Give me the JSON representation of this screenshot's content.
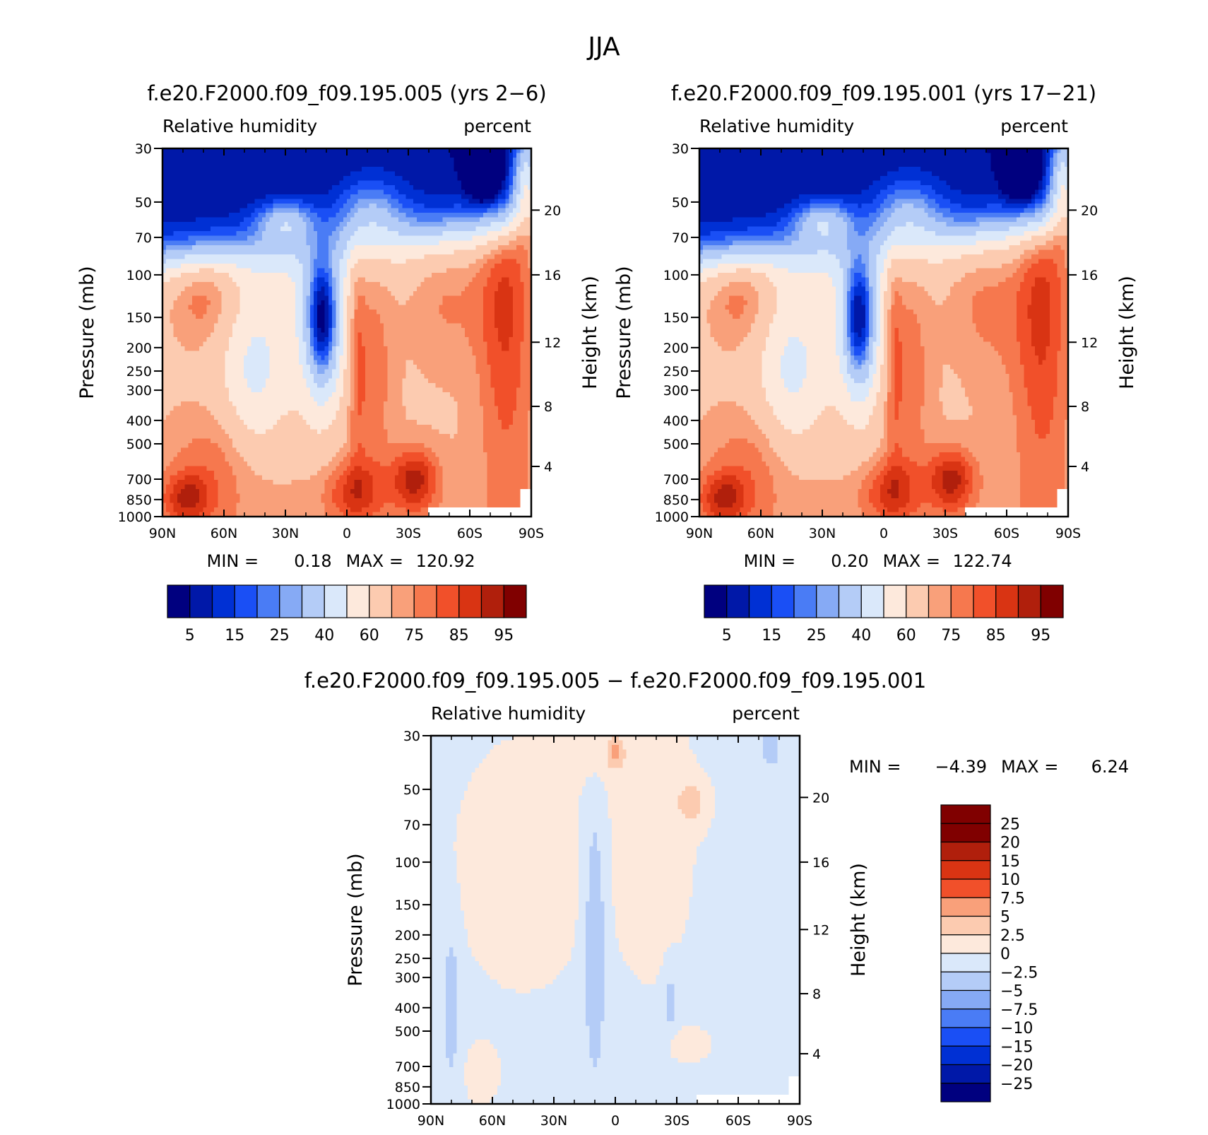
{
  "page_title": "JJA",
  "chart_data": [
    {
      "type": "heatmap",
      "subtype": "filled-contour latitude-pressure cross section",
      "title": "f.e20.F2000.f09_f09.195.005 (yrs 2-6)",
      "left_label": "Relative humidity",
      "right_label": "percent",
      "ylabel": "Pressure (mb)",
      "y2label": "Height (km)",
      "x_ticks": [
        "90N",
        "60N",
        "30N",
        "0",
        "30S",
        "60S",
        "90S"
      ],
      "y_ticks": [
        "30",
        "50",
        "70",
        "100",
        "150",
        "200",
        "250",
        "300",
        "400",
        "500",
        "700",
        "850",
        "1000"
      ],
      "y2_ticks": [
        "20",
        "16",
        "12",
        "8",
        "4"
      ],
      "stats": {
        "min_label": "MIN =",
        "min": "0.18",
        "max_label": "MAX =",
        "max": "120.92"
      },
      "colorbar": {
        "orientation": "horizontal",
        "colors": [
          "#00007f",
          "#0018a8",
          "#0030d4",
          "#1a4ff5",
          "#4a7cf5",
          "#86aaf5",
          "#b4ccf7",
          "#dae8fa",
          "#fde9dc",
          "#fccbb0",
          "#f9a07a",
          "#f6784e",
          "#f1502a",
          "#d93413",
          "#b01f0c",
          "#800000"
        ],
        "labels": [
          "5",
          "15",
          "25",
          "40",
          "60",
          "75",
          "85",
          "95"
        ]
      }
    },
    {
      "type": "heatmap",
      "subtype": "filled-contour latitude-pressure cross section",
      "title": "f.e20.F2000.f09_f09.195.001 (yrs 17-21)",
      "left_label": "Relative humidity",
      "right_label": "percent",
      "ylabel": "Pressure (mb)",
      "y2label": "Height (km)",
      "x_ticks": [
        "90N",
        "60N",
        "30N",
        "0",
        "30S",
        "60S",
        "90S"
      ],
      "y_ticks": [
        "30",
        "50",
        "70",
        "100",
        "150",
        "200",
        "250",
        "300",
        "400",
        "500",
        "700",
        "850",
        "1000"
      ],
      "y2_ticks": [
        "20",
        "16",
        "12",
        "8",
        "4"
      ],
      "stats": {
        "min_label": "MIN =",
        "min": "0.20",
        "max_label": "MAX =",
        "max": "122.74"
      },
      "colorbar": {
        "orientation": "horizontal",
        "colors": [
          "#00007f",
          "#0018a8",
          "#0030d4",
          "#1a4ff5",
          "#4a7cf5",
          "#86aaf5",
          "#b4ccf7",
          "#dae8fa",
          "#fde9dc",
          "#fccbb0",
          "#f9a07a",
          "#f6784e",
          "#f1502a",
          "#d93413",
          "#b01f0c",
          "#800000"
        ],
        "labels": [
          "5",
          "15",
          "25",
          "40",
          "60",
          "75",
          "85",
          "95"
        ]
      }
    },
    {
      "type": "heatmap",
      "subtype": "filled-contour difference cross section",
      "title": "f.e20.F2000.f09_f09.195.005 - f.e20.F2000.f09_f09.195.001",
      "left_label": "Relative humidity",
      "right_label": "percent",
      "ylabel": "Pressure (mb)",
      "y2label": "Height (km)",
      "x_ticks": [
        "90N",
        "60N",
        "30N",
        "0",
        "30S",
        "60S",
        "90S"
      ],
      "y_ticks": [
        "30",
        "50",
        "70",
        "100",
        "150",
        "200",
        "250",
        "300",
        "400",
        "500",
        "700",
        "850",
        "1000"
      ],
      "y2_ticks": [
        "20",
        "16",
        "12",
        "8",
        "4"
      ],
      "stats": {
        "min_label": "MIN =",
        "min": "-4.39",
        "max_label": "MAX =",
        "max": "6.24"
      },
      "colorbar": {
        "orientation": "vertical",
        "colors": [
          "#800000",
          "#b01f0c",
          "#d93413",
          "#f1502a",
          "#f9a07a",
          "#fccbb0",
          "#fde9dc",
          "#dae8fa",
          "#b4ccf7",
          "#86aaf5",
          "#4a7cf5",
          "#1a4ff5",
          "#0030d4",
          "#0018a8",
          "#00007f"
        ],
        "labels": [
          "25",
          "20",
          "15",
          "10",
          "7.5",
          "5",
          "2.5",
          "0",
          "-2.5",
          "-5",
          "-7.5",
          "-10",
          "-15",
          "-20",
          "-25"
        ]
      }
    }
  ]
}
